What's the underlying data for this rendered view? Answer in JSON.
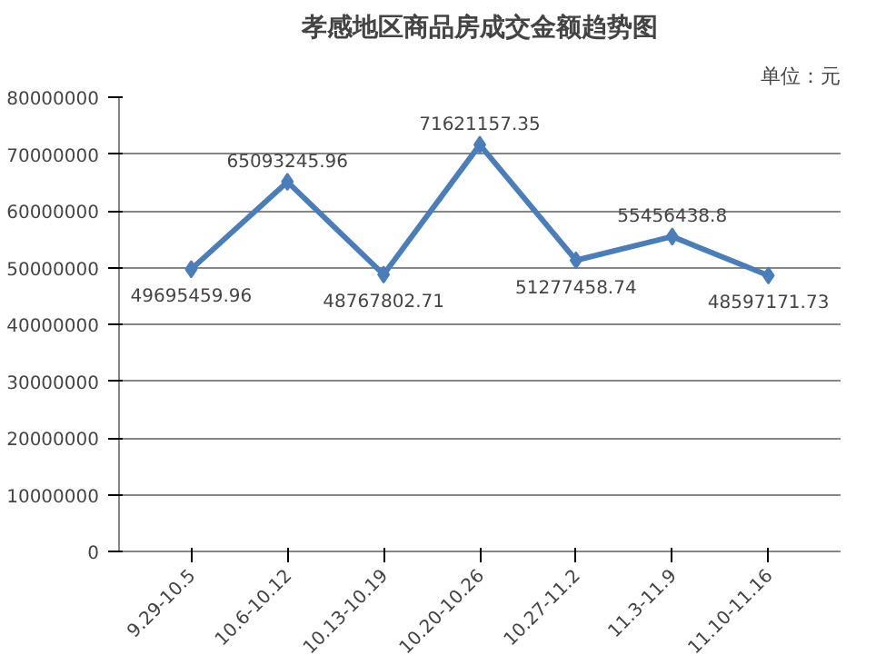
{
  "chart_data": {
    "type": "line",
    "title": "孝感地区商品房成交金额趋势图",
    "annotations": [
      "单位：元"
    ],
    "categories": [
      "9.29-10.5",
      "10.6-10.12",
      "10.13-10.19",
      "10.20-10.26",
      "10.27-11.2",
      "11.3-11.9",
      "11.10-11.16"
    ],
    "series": [
      {
        "color": "#4a7ebb",
        "values": [
          49695459.96,
          65093245.96,
          48767802.71,
          71621157.35,
          51277458.74,
          55456438.8,
          48597171.73
        ]
      }
    ],
    "ylim": [
      0,
      80000000
    ],
    "yticks": [
      0,
      10000000,
      20000000,
      30000000,
      40000000,
      50000000,
      60000000,
      70000000,
      80000000
    ],
    "grid": "y",
    "marker": "diamond",
    "line_style": "solid",
    "data_labels": true
  }
}
